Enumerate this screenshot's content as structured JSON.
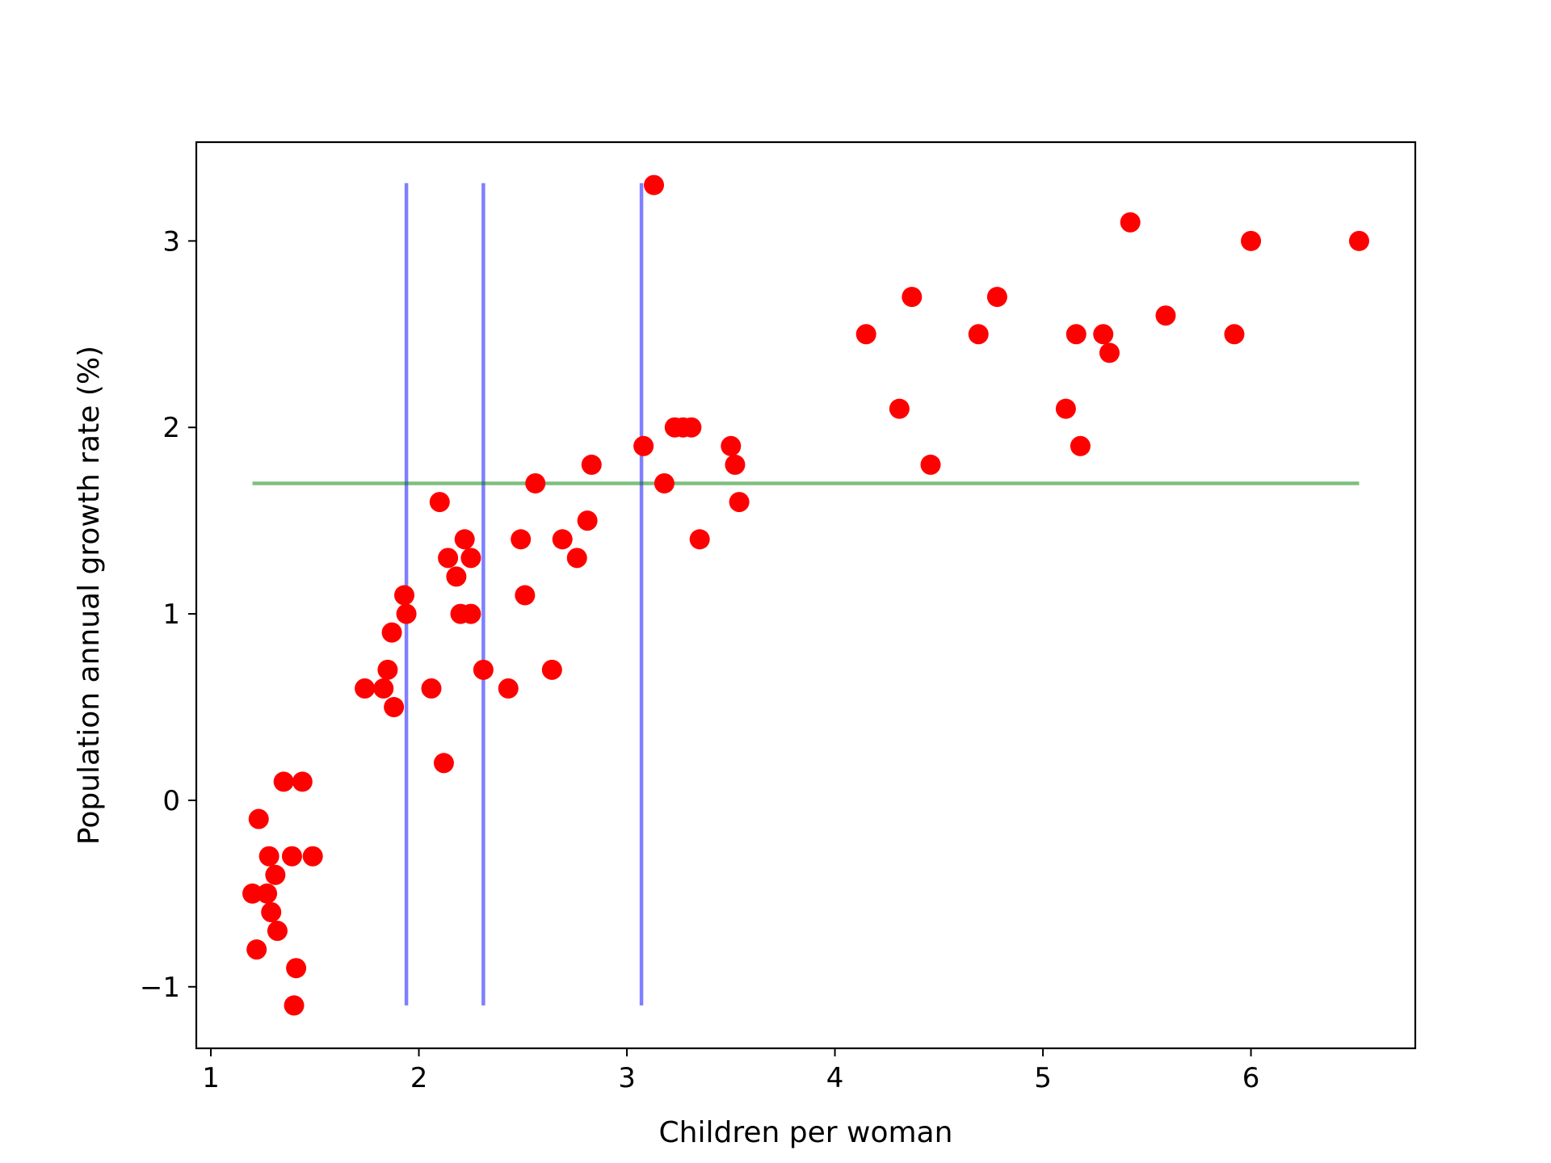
{
  "chart_data": {
    "type": "scatter",
    "title": "",
    "xlabel": "Children per woman",
    "ylabel": "Population annual growth rate (%)",
    "xlim": [
      0.93,
      6.79
    ],
    "ylim": [
      -1.33,
      3.53
    ],
    "xticks": [
      1,
      2,
      3,
      4,
      5,
      6
    ],
    "yticks": [
      -1,
      0,
      1,
      2,
      3
    ],
    "xtick_labels": [
      "1",
      "2",
      "3",
      "4",
      "5",
      "6"
    ],
    "ytick_labels": [
      "−1",
      "0",
      "1",
      "2",
      "3"
    ],
    "grid": false,
    "legend": "none",
    "marker_color": "#ff0000",
    "points": [
      {
        "x": 1.2,
        "y": -0.5
      },
      {
        "x": 1.22,
        "y": -0.8
      },
      {
        "x": 1.23,
        "y": -0.1
      },
      {
        "x": 1.27,
        "y": -0.5
      },
      {
        "x": 1.28,
        "y": -0.3
      },
      {
        "x": 1.29,
        "y": -0.6
      },
      {
        "x": 1.31,
        "y": -0.4
      },
      {
        "x": 1.32,
        "y": -0.7
      },
      {
        "x": 1.35,
        "y": 0.1
      },
      {
        "x": 1.39,
        "y": -0.3
      },
      {
        "x": 1.4,
        "y": -1.1
      },
      {
        "x": 1.41,
        "y": -0.9
      },
      {
        "x": 1.44,
        "y": 0.1
      },
      {
        "x": 1.49,
        "y": -0.3
      },
      {
        "x": 1.74,
        "y": 0.6
      },
      {
        "x": 1.83,
        "y": 0.6
      },
      {
        "x": 1.85,
        "y": 0.7
      },
      {
        "x": 1.87,
        "y": 0.9
      },
      {
        "x": 1.88,
        "y": 0.5
      },
      {
        "x": 1.93,
        "y": 1.1
      },
      {
        "x": 1.94,
        "y": 1.0
      },
      {
        "x": 2.06,
        "y": 0.6
      },
      {
        "x": 2.1,
        "y": 1.6
      },
      {
        "x": 2.12,
        "y": 0.2
      },
      {
        "x": 2.14,
        "y": 1.3
      },
      {
        "x": 2.18,
        "y": 1.2
      },
      {
        "x": 2.2,
        "y": 1.0
      },
      {
        "x": 2.22,
        "y": 1.4
      },
      {
        "x": 2.25,
        "y": 1.3
      },
      {
        "x": 2.25,
        "y": 1.0
      },
      {
        "x": 2.31,
        "y": 0.7
      },
      {
        "x": 2.43,
        "y": 0.6
      },
      {
        "x": 2.49,
        "y": 1.4
      },
      {
        "x": 2.51,
        "y": 1.1
      },
      {
        "x": 2.56,
        "y": 1.7
      },
      {
        "x": 2.64,
        "y": 0.7
      },
      {
        "x": 2.69,
        "y": 1.4
      },
      {
        "x": 2.76,
        "y": 1.3
      },
      {
        "x": 2.81,
        "y": 1.5
      },
      {
        "x": 2.83,
        "y": 1.8
      },
      {
        "x": 3.08,
        "y": 1.9
      },
      {
        "x": 3.13,
        "y": 3.3
      },
      {
        "x": 3.18,
        "y": 1.7
      },
      {
        "x": 3.23,
        "y": 2.0
      },
      {
        "x": 3.27,
        "y": 2.0
      },
      {
        "x": 3.31,
        "y": 2.0
      },
      {
        "x": 3.35,
        "y": 1.4
      },
      {
        "x": 3.5,
        "y": 1.9
      },
      {
        "x": 3.52,
        "y": 1.8
      },
      {
        "x": 3.54,
        "y": 1.6
      },
      {
        "x": 4.15,
        "y": 2.5
      },
      {
        "x": 4.31,
        "y": 2.1
      },
      {
        "x": 4.37,
        "y": 2.7
      },
      {
        "x": 4.46,
        "y": 1.8
      },
      {
        "x": 4.69,
        "y": 2.5
      },
      {
        "x": 4.78,
        "y": 2.7
      },
      {
        "x": 5.11,
        "y": 2.1
      },
      {
        "x": 5.16,
        "y": 2.5
      },
      {
        "x": 5.18,
        "y": 1.9
      },
      {
        "x": 5.29,
        "y": 2.5
      },
      {
        "x": 5.32,
        "y": 2.4
      },
      {
        "x": 5.42,
        "y": 3.1
      },
      {
        "x": 5.59,
        "y": 2.6
      },
      {
        "x": 5.92,
        "y": 2.5
      },
      {
        "x": 6.0,
        "y": 3.0
      },
      {
        "x": 6.52,
        "y": 3.0
      }
    ],
    "vertical_lines": [
      {
        "x": 1.94,
        "y_from": -1.1,
        "y_to": 3.31,
        "color": "#0000ff"
      },
      {
        "x": 2.31,
        "y_from": -1.1,
        "y_to": 3.31,
        "color": "#0000ff"
      },
      {
        "x": 3.07,
        "y_from": -1.1,
        "y_to": 3.31,
        "color": "#0000ff"
      }
    ],
    "horizontal_lines": [
      {
        "y": 1.7,
        "x_from": 1.2,
        "x_to": 6.52,
        "color": "#008000"
      }
    ]
  }
}
